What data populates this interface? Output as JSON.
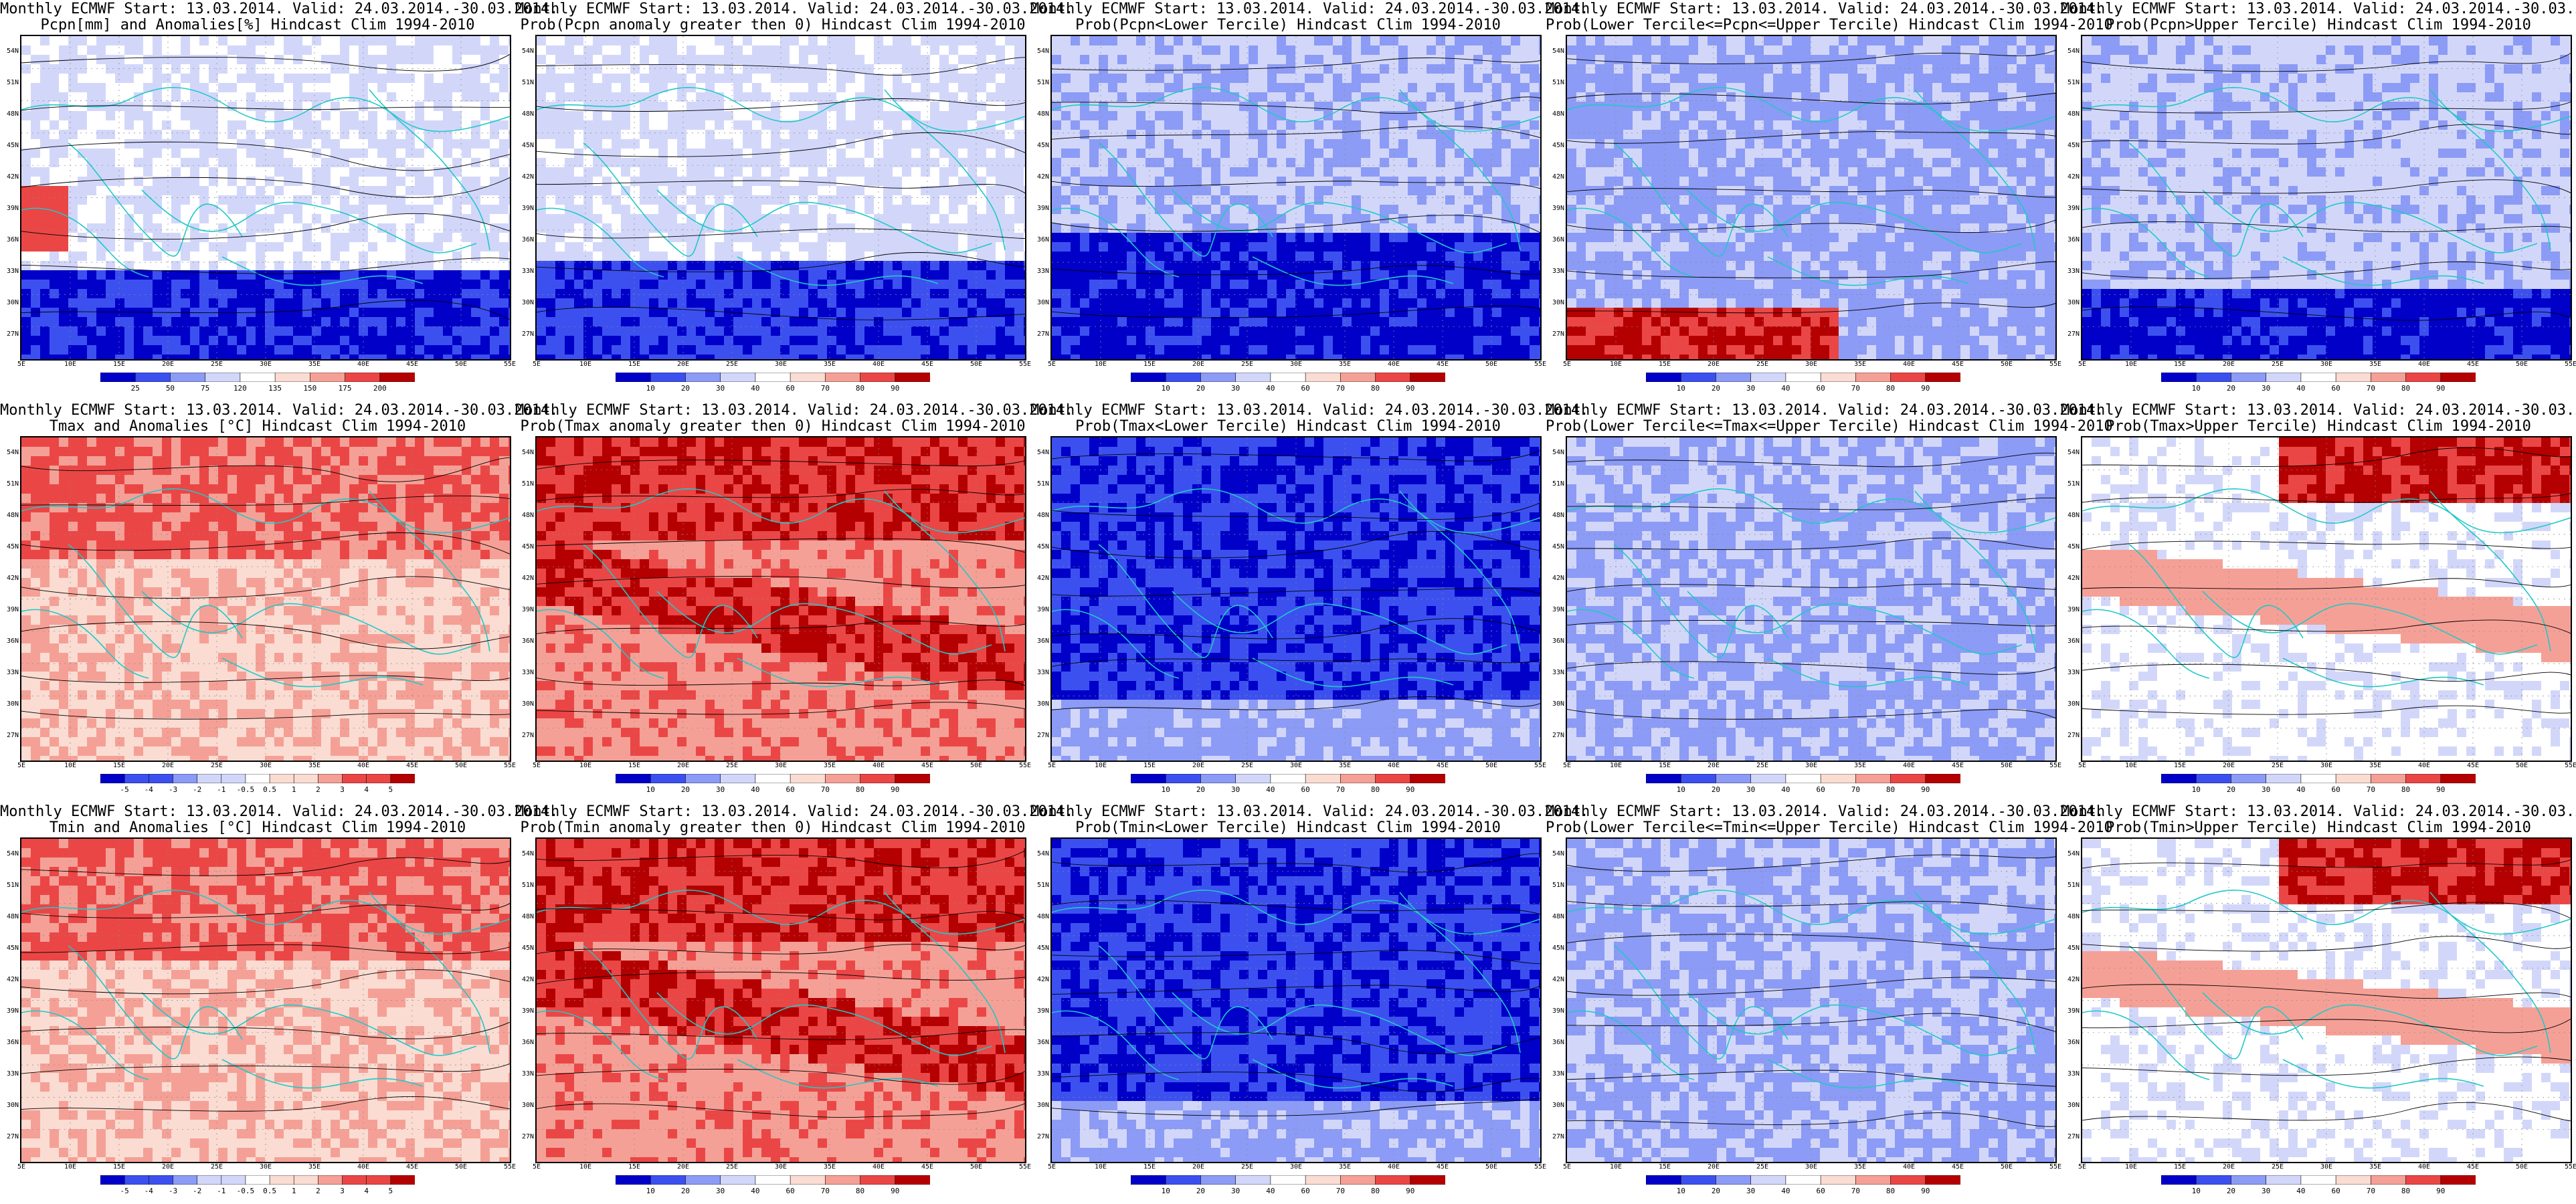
{
  "title_line1": "Monthly ECMWF Start: 13.03.2014. Valid: 24.03.2014.-30.03.2014.",
  "lat_labels": [
    "54N",
    "51N",
    "48N",
    "45N",
    "42N",
    "39N",
    "36N",
    "33N",
    "30N",
    "27N"
  ],
  "lon_labels": [
    "5E",
    "10E",
    "15E",
    "20E",
    "25E",
    "30E",
    "35E",
    "40E",
    "45E",
    "50E",
    "55E"
  ],
  "colors": {
    "blue_dark": "#0000c8",
    "blue_mid": "#3c50f0",
    "blue_light": "#8c9bf5",
    "blue_pale": "#d2d7fa",
    "white": "#ffffff",
    "red_pale": "#fadcd2",
    "red_light": "#f5a096",
    "red_mid": "#eb4646",
    "red_dark": "#b40000",
    "coast": "#20c8c8",
    "contour": "#000000"
  },
  "panels": [
    {
      "title2": "Pcpn[mm] and Anomalies[%] Hindcast Clim 1994-2010",
      "scheme": "precip_anom",
      "colorbar": [
        "25",
        "50",
        "75",
        "120",
        "135",
        "150",
        "175",
        "200"
      ],
      "icon": "anomaly-map"
    },
    {
      "title2": "Prob(Pcpn anomaly greater then 0) Hindcast Clim 1994-2010",
      "scheme": "precip_pos",
      "colorbar": [
        "10",
        "20",
        "30",
        "40",
        "60",
        "70",
        "80",
        "90"
      ],
      "icon": "probability-map"
    },
    {
      "title2": "Prob(Pcpn<Lower Tercile) Hindcast Clim 1994-2010",
      "scheme": "precip_low",
      "colorbar": [
        "10",
        "20",
        "30",
        "40",
        "60",
        "70",
        "80",
        "90"
      ],
      "icon": "probability-map"
    },
    {
      "title2": "Prob(Lower Tercile<=Pcpn<=Upper Tercile) Hindcast Clim 1994-2010",
      "scheme": "precip_mid",
      "colorbar": [
        "10",
        "20",
        "30",
        "40",
        "60",
        "70",
        "80",
        "90"
      ],
      "icon": "probability-map"
    },
    {
      "title2": "Prob(Pcpn>Upper Tercile) Hindcast Clim 1994-2010",
      "scheme": "precip_up",
      "colorbar": [
        "10",
        "20",
        "30",
        "40",
        "60",
        "70",
        "80",
        "90"
      ],
      "icon": "probability-map"
    },
    {
      "title2": "Tmax and Anomalies [°C] Hindcast Clim 1994-2010",
      "scheme": "tmax_anom",
      "colorbar": [
        "-5",
        "-4",
        "-3",
        "-2",
        "-1",
        "-0.5",
        "0.5",
        "1",
        "2",
        "3",
        "4",
        "5"
      ],
      "icon": "anomaly-map"
    },
    {
      "title2": "Prob(Tmax anomaly greater then 0) Hindcast Clim 1994-2010",
      "scheme": "tmax_pos",
      "colorbar": [
        "10",
        "20",
        "30",
        "40",
        "60",
        "70",
        "80",
        "90"
      ],
      "icon": "probability-map"
    },
    {
      "title2": "Prob(Tmax<Lower Tercile) Hindcast Clim 1994-2010",
      "scheme": "tmax_low",
      "colorbar": [
        "10",
        "20",
        "30",
        "40",
        "60",
        "70",
        "80",
        "90"
      ],
      "icon": "probability-map"
    },
    {
      "title2": "Prob(Lower Tercile<=Tmax<=Upper Tercile) Hindcast Clim 1994-2010",
      "scheme": "tmax_mid",
      "colorbar": [
        "10",
        "20",
        "30",
        "40",
        "60",
        "70",
        "80",
        "90"
      ],
      "icon": "probability-map"
    },
    {
      "title2": "Prob(Tmax>Upper Tercile) Hindcast Clim 1994-2010",
      "scheme": "tmax_up",
      "colorbar": [
        "10",
        "20",
        "30",
        "40",
        "60",
        "70",
        "80",
        "90"
      ],
      "icon": "probability-map"
    },
    {
      "title2": "Tmin and Anomalies [°C] Hindcast Clim 1994-2010",
      "scheme": "tmin_anom",
      "colorbar": [
        "-5",
        "-4",
        "-3",
        "-2",
        "-1",
        "-0.5",
        "0.5",
        "1",
        "2",
        "3",
        "4",
        "5"
      ],
      "icon": "anomaly-map"
    },
    {
      "title2": "Prob(Tmin anomaly greater then 0) Hindcast Clim 1994-2010",
      "scheme": "tmin_pos",
      "colorbar": [
        "10",
        "20",
        "30",
        "40",
        "60",
        "70",
        "80",
        "90"
      ],
      "icon": "probability-map"
    },
    {
      "title2": "Prob(Tmin<Lower Tercile) Hindcast Clim 1994-2010",
      "scheme": "tmin_low",
      "colorbar": [
        "10",
        "20",
        "30",
        "40",
        "60",
        "70",
        "80",
        "90"
      ],
      "icon": "probability-map"
    },
    {
      "title2": "Prob(Lower Tercile<=Tmin<=Upper Tercile) Hindcast Clim 1994-2010",
      "scheme": "tmin_mid",
      "colorbar": [
        "10",
        "20",
        "30",
        "40",
        "60",
        "70",
        "80",
        "90"
      ],
      "icon": "probability-map"
    },
    {
      "title2": "Prob(Tmin>Upper Tercile) Hindcast Clim 1994-2010",
      "scheme": "tmin_up",
      "colorbar": [
        "10",
        "20",
        "30",
        "40",
        "60",
        "70",
        "80",
        "90"
      ],
      "icon": "probability-map"
    }
  ]
}
